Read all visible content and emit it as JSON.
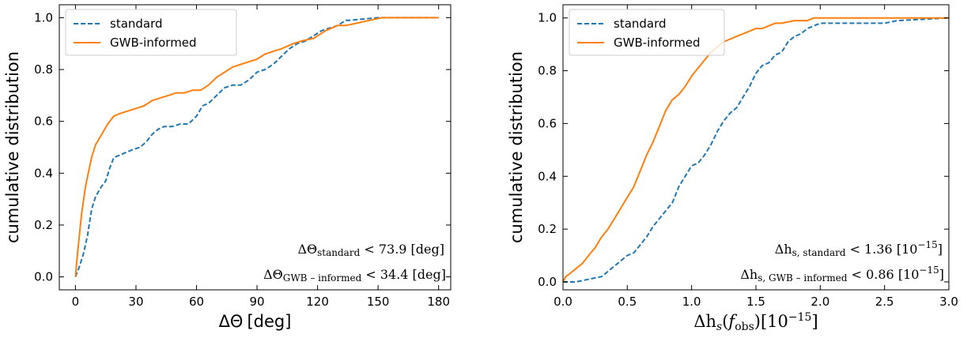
{
  "chart_data": [
    {
      "type": "line",
      "xlabel_symbol": "ΔΘ",
      "xlabel_unit": "[deg]",
      "ylabel": "cumulative distribution",
      "xlim": [
        -8,
        186
      ],
      "ylim": [
        -0.05,
        1.05
      ],
      "xticks": [
        0,
        30,
        60,
        90,
        120,
        150,
        180
      ],
      "yticks": [
        0.0,
        0.2,
        0.4,
        0.6,
        0.8,
        1.0
      ],
      "xtick_labels": [
        "0",
        "30",
        "60",
        "90",
        "120",
        "150",
        "180"
      ],
      "ytick_labels": [
        "0.0",
        "0.2",
        "0.4",
        "0.6",
        "0.8",
        "1.0"
      ],
      "legend_position": "top-left",
      "series": [
        {
          "name": "standard",
          "color": "#1f77b4",
          "style": "dashed",
          "x": [
            0,
            2,
            4,
            6,
            8,
            10,
            13,
            15,
            17,
            19,
            22,
            25,
            28,
            32,
            35,
            38,
            41,
            44,
            48,
            52,
            56,
            60,
            63,
            66,
            70,
            74,
            78,
            82,
            86,
            90,
            94,
            98,
            102,
            106,
            110,
            114,
            118,
            122,
            126,
            130,
            134,
            136,
            150,
            180
          ],
          "y": [
            0.0,
            0.04,
            0.09,
            0.16,
            0.26,
            0.31,
            0.35,
            0.37,
            0.42,
            0.46,
            0.47,
            0.48,
            0.49,
            0.5,
            0.52,
            0.55,
            0.57,
            0.58,
            0.58,
            0.59,
            0.59,
            0.62,
            0.66,
            0.67,
            0.7,
            0.73,
            0.74,
            0.74,
            0.76,
            0.79,
            0.8,
            0.82,
            0.85,
            0.88,
            0.9,
            0.91,
            0.93,
            0.95,
            0.96,
            0.97,
            0.99,
            0.99,
            1.0,
            1.0
          ]
        },
        {
          "name": "GWB-informed",
          "color": "#ff7f0e",
          "style": "solid",
          "x": [
            0,
            1,
            3,
            5,
            8,
            10,
            13,
            16,
            19,
            22,
            26,
            30,
            34,
            38,
            42,
            46,
            50,
            54,
            58,
            62,
            66,
            70,
            74,
            78,
            82,
            86,
            90,
            94,
            98,
            102,
            108,
            112,
            118,
            124,
            130,
            134,
            140,
            146,
            152,
            180
          ],
          "y": [
            0.0,
            0.09,
            0.24,
            0.35,
            0.46,
            0.51,
            0.55,
            0.59,
            0.62,
            0.63,
            0.64,
            0.65,
            0.66,
            0.68,
            0.69,
            0.7,
            0.71,
            0.71,
            0.72,
            0.72,
            0.74,
            0.77,
            0.79,
            0.81,
            0.82,
            0.83,
            0.84,
            0.86,
            0.87,
            0.88,
            0.9,
            0.91,
            0.92,
            0.95,
            0.97,
            0.97,
            0.98,
            0.99,
            1.0,
            1.0
          ]
        }
      ],
      "annotations": [
        {
          "sym": "ΔΘ",
          "sub": "standard",
          "rest": " < 73.9 [deg]"
        },
        {
          "sym": "ΔΘ",
          "sub": "GWB – informed",
          "rest": " < 34.4 [deg]"
        }
      ]
    },
    {
      "type": "line",
      "xlabel_symbol": "Δh",
      "xlabel_sub": "s",
      "xlabel_paren": "f",
      "xlabel_paren_sub": "obs",
      "xlabel_unit": "[10",
      "xlabel_exp": "−15",
      "ylabel": "cumulative distribution",
      "xlim": [
        0.0,
        3.0
      ],
      "ylim": [
        -0.03,
        1.05
      ],
      "xticks": [
        0.0,
        0.5,
        1.0,
        1.5,
        2.0,
        2.5,
        3.0
      ],
      "yticks": [
        0.0,
        0.2,
        0.4,
        0.6,
        0.8,
        1.0
      ],
      "xtick_labels": [
        "0.0",
        "0.5",
        "1.0",
        "1.5",
        "2.0",
        "2.5",
        "3.0"
      ],
      "ytick_labels": [
        "0.0",
        "0.2",
        "0.4",
        "0.6",
        "0.8",
        "1.0"
      ],
      "legend_position": "top-left",
      "series": [
        {
          "name": "standard",
          "color": "#1f77b4",
          "style": "dashed",
          "x": [
            0.0,
            0.1,
            0.2,
            0.3,
            0.35,
            0.4,
            0.45,
            0.5,
            0.55,
            0.6,
            0.65,
            0.7,
            0.75,
            0.8,
            0.85,
            0.9,
            0.95,
            1.0,
            1.05,
            1.1,
            1.15,
            1.2,
            1.25,
            1.3,
            1.35,
            1.4,
            1.45,
            1.5,
            1.55,
            1.6,
            1.65,
            1.7,
            1.75,
            1.8,
            1.85,
            1.9,
            1.95,
            2.0,
            2.1,
            2.5,
            2.6,
            3.0
          ],
          "y": [
            0.0,
            0.0,
            0.01,
            0.02,
            0.04,
            0.06,
            0.08,
            0.1,
            0.11,
            0.14,
            0.17,
            0.21,
            0.24,
            0.27,
            0.3,
            0.36,
            0.4,
            0.44,
            0.45,
            0.48,
            0.52,
            0.57,
            0.61,
            0.64,
            0.66,
            0.7,
            0.74,
            0.79,
            0.82,
            0.83,
            0.86,
            0.87,
            0.91,
            0.93,
            0.94,
            0.96,
            0.97,
            0.98,
            0.98,
            0.98,
            0.99,
            1.0
          ]
        },
        {
          "name": "GWB-informed",
          "color": "#ff7f0e",
          "style": "solid",
          "x": [
            0.0,
            0.02,
            0.05,
            0.1,
            0.15,
            0.2,
            0.25,
            0.3,
            0.35,
            0.4,
            0.45,
            0.5,
            0.55,
            0.6,
            0.65,
            0.7,
            0.75,
            0.8,
            0.85,
            0.9,
            0.95,
            1.0,
            1.05,
            1.1,
            1.15,
            1.2,
            1.25,
            1.3,
            1.35,
            1.4,
            1.45,
            1.5,
            1.55,
            1.6,
            1.65,
            1.7,
            1.8,
            1.9,
            1.95,
            2.0,
            3.0
          ],
          "y": [
            0.0,
            0.02,
            0.03,
            0.05,
            0.07,
            0.1,
            0.13,
            0.17,
            0.2,
            0.24,
            0.28,
            0.32,
            0.36,
            0.42,
            0.48,
            0.53,
            0.59,
            0.65,
            0.69,
            0.71,
            0.74,
            0.78,
            0.81,
            0.84,
            0.87,
            0.89,
            0.91,
            0.92,
            0.93,
            0.94,
            0.95,
            0.96,
            0.96,
            0.97,
            0.98,
            0.98,
            0.99,
            0.99,
            1.0,
            1.0,
            1.0
          ]
        }
      ],
      "annotations": [
        {
          "sym": "Δh",
          "sub": "s, standard",
          "rest": " < 1.36 [10",
          "exp": "−15",
          "close": "]"
        },
        {
          "sym": "Δh",
          "sub": "s, GWB – informed",
          "rest": " < 0.86 [10",
          "exp": "−15",
          "close": "]"
        }
      ]
    }
  ]
}
